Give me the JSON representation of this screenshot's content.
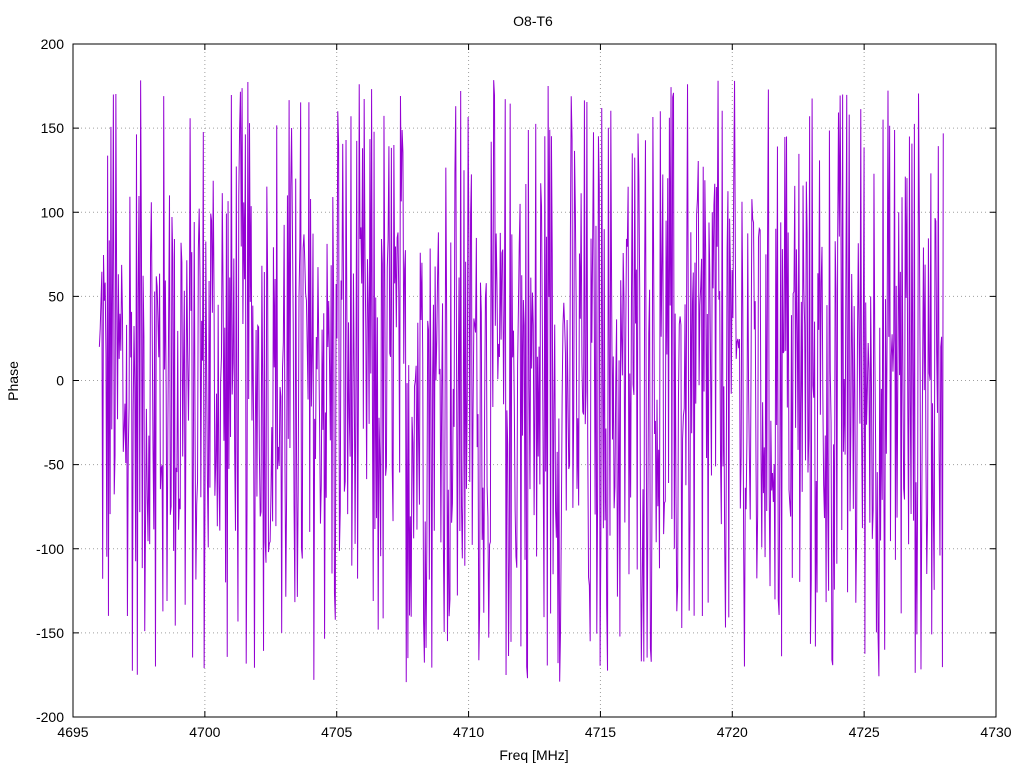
{
  "chart_data": {
    "type": "line",
    "title": "O8-T6",
    "xlabel": "Freq [MHz]",
    "ylabel": "Phase",
    "xlim": [
      4695,
      4730
    ],
    "ylim": [
      -200,
      200
    ],
    "xticks": [
      4695,
      4700,
      4705,
      4710,
      4715,
      4720,
      4725,
      4730
    ],
    "yticks": [
      -200,
      -150,
      -100,
      -50,
      0,
      50,
      100,
      150,
      200
    ],
    "xtick_labels": [
      "4695",
      "4700",
      "4705",
      "4710",
      "4715",
      "4720",
      "4725",
      "4730"
    ],
    "ytick_labels": [
      "-200",
      "-150",
      "-100",
      "-50",
      "0",
      "50",
      "100",
      "150",
      "200"
    ],
    "grid": true,
    "legend": "none",
    "series": [
      {
        "color": "#9400d3",
        "x_start": 4696.0,
        "x_end": 4728.0,
        "num_points": 1024,
        "min": -180,
        "max": 180,
        "sample_values": [
          20,
          170,
          -140,
          80,
          -170,
          110,
          10,
          -60,
          95,
          -120,
          150,
          -30,
          60,
          -150,
          120,
          -90,
          40,
          160,
          -110,
          30,
          -45,
          140,
          -165,
          70,
          0,
          -130,
          125,
          -20,
          55,
          -175,
          105,
          -80,
          175,
          -10,
          45,
          -155,
          90,
          -70,
          135,
          -35,
          160,
          -100,
          25,
          -140,
          115,
          65,
          -170,
          85,
          -55,
          145,
          -15,
          35,
          -125,
          170,
          -90,
          50,
          -160,
          100,
          5,
          -115
        ]
      }
    ]
  }
}
